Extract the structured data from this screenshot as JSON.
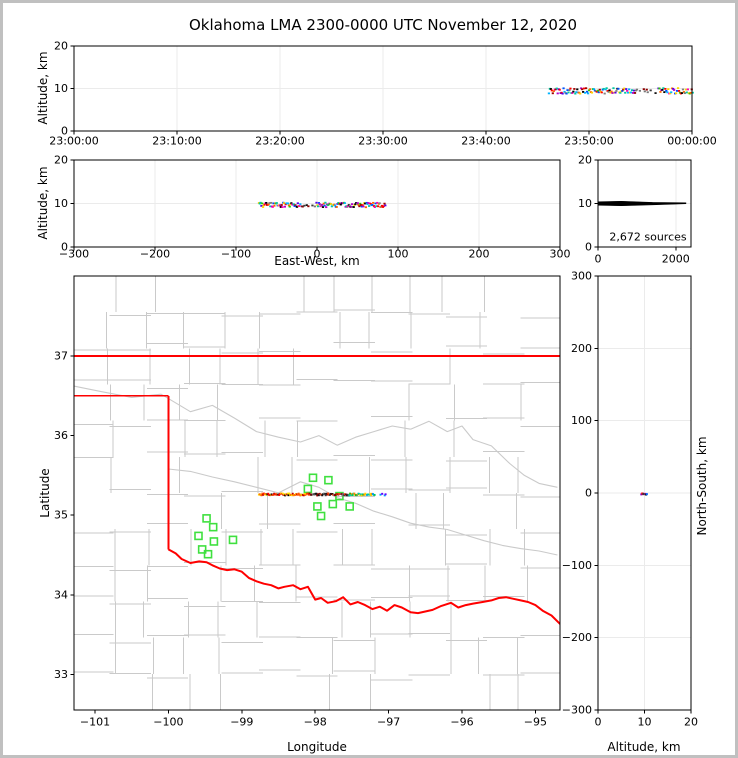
{
  "title": "Oklahoma LMA 2300-0000 UTC November 12, 2020",
  "panels": {
    "time_height": {
      "ylabel": "Altitude, km",
      "xticks": [
        "23:00:00",
        "23:10:00",
        "23:20:00",
        "23:30:00",
        "23:40:00",
        "23:50:00",
        "00:00:00"
      ],
      "yticks": [
        "0",
        "10",
        "20"
      ]
    },
    "ew_height": {
      "xlabel": "East-West, km",
      "ylabel": "Altitude, km",
      "xticks": [
        "−300",
        "−200",
        "−100",
        "0",
        "100",
        "200",
        "300"
      ],
      "yticks": [
        "0",
        "10",
        "20"
      ]
    },
    "alt_hist": {
      "annotation": "2,672 sources",
      "xticks": [
        "0",
        "2000"
      ],
      "yticks": [
        "0",
        "10",
        "20"
      ]
    },
    "map": {
      "xlabel": "Longitude",
      "ylabel": "Latitude",
      "xticks": [
        "−101",
        "−100",
        "−99",
        "−98",
        "−97",
        "−96",
        "−95"
      ],
      "yticks": [
        "33",
        "34",
        "35",
        "36",
        "37"
      ]
    },
    "ns_height": {
      "xlabel": "Altitude, km",
      "ylabel": "North-South, km",
      "xticks": [
        "0",
        "10",
        "20"
      ],
      "yticks": [
        "−300",
        "−200",
        "−100",
        "0",
        "100",
        "200",
        "300"
      ]
    }
  },
  "colors": {
    "frame": "#c0c0c0",
    "spine": "#000000",
    "grid": "#ebebeb",
    "county": "#cacaca",
    "state_border": "#ff0000",
    "station": "#3fe03f",
    "histogram": "#000000",
    "palettes": {
      "full": [
        "#ff0000",
        "#ff6600",
        "#ffd400",
        "#2ecc00",
        "#00c8a0",
        "#00b4ff",
        "#0050ff",
        "#5a00e6",
        "#b400c8",
        "#ff00b4",
        "#000000",
        "#808080",
        "#a00000"
      ],
      "warm": [
        "#ff0000",
        "#ff5a00",
        "#ffb400",
        "#c80000",
        "#000000",
        "#ffe000"
      ],
      "dark": [
        "#141414",
        "#3c3c3c",
        "#787878",
        "#8c0000",
        "#ff3c00"
      ],
      "cool": [
        "#00c850",
        "#00c8a0",
        "#ff8c00",
        "#28b400",
        "#00a0ff",
        "#ffd400"
      ],
      "sparse_blue": [
        "#0064ff",
        "#00a0ff",
        "#6400ff"
      ]
    }
  },
  "chart_data": [
    {
      "id": "time_height",
      "type": "scatter",
      "x_axis": "time_utc",
      "x_range": [
        "23:00:00",
        "00:00:00"
      ],
      "x_tick_step_min": 10,
      "ylim_km": [
        0,
        20
      ],
      "yticks_km": [
        0,
        10,
        20
      ],
      "source_band": {
        "time_extent_min_after_2300": [
          46,
          60
        ],
        "sparse_gap_min": [
          54.3,
          56.6
        ],
        "altitude_km": [
          9.0,
          10.3
        ]
      }
    },
    {
      "id": "ew_height",
      "type": "scatter",
      "xlim_km": [
        -300,
        300
      ],
      "xticks_km": [
        -300,
        -200,
        -100,
        0,
        100,
        200,
        300
      ],
      "ylim_km": [
        0,
        20
      ],
      "yticks_km": [
        0,
        10,
        20
      ],
      "source_band": {
        "ew_km_extent": [
          -73,
          83
        ],
        "sparse_gap_km": [
          -22,
          -2
        ],
        "altitude_km": [
          9.35,
          10.4
        ]
      }
    },
    {
      "id": "altitude_histogram",
      "type": "line",
      "xlim_sources": [
        0,
        2390
      ],
      "xticks_sources": [
        0,
        2000
      ],
      "ylim_km": [
        0,
        20
      ],
      "yticks_km": [
        0,
        10,
        20
      ],
      "total_sources": 2672,
      "annotation": "2,672 sources",
      "profile_sources_vs_km": [
        [
          0,
          10.4
        ],
        [
          600,
          10.5
        ],
        [
          1400,
          10.25
        ],
        [
          2260,
          10.15
        ],
        [
          2260,
          9.95
        ],
        [
          1400,
          9.7
        ],
        [
          600,
          9.5
        ],
        [
          0,
          9.6
        ]
      ]
    },
    {
      "id": "plan_view_map",
      "type": "map-scatter",
      "xlim_lon": [
        -101.29,
        -94.66
      ],
      "ylim_lat": [
        32.55,
        38.0
      ],
      "xticks_lon": [
        -101,
        -100,
        -99,
        -98,
        -97,
        -96,
        -95
      ],
      "yticks_lat": [
        33,
        34,
        35,
        36,
        37
      ],
      "flash_band": {
        "lat": 35.27,
        "lon_extent": [
          -98.78,
          -97.05
        ],
        "color_zones": [
          {
            "lon_to": -98.13,
            "palette": "warm"
          },
          {
            "lon_to": -97.55,
            "palette": "dark"
          },
          {
            "lon_to": -97.2,
            "palette": "cool"
          },
          {
            "lon_to": -97.05,
            "palette": "sparse_blue"
          }
        ]
      },
      "stations_lonlat": [
        [
          -98.03,
          35.47
        ],
        [
          -97.82,
          35.44
        ],
        [
          -98.1,
          35.33
        ],
        [
          -97.67,
          35.24
        ],
        [
          -97.76,
          35.14
        ],
        [
          -97.97,
          35.11
        ],
        [
          -97.53,
          35.11
        ],
        [
          -97.92,
          34.99
        ],
        [
          -99.48,
          34.96
        ],
        [
          -99.39,
          34.85
        ],
        [
          -99.59,
          34.74
        ],
        [
          -99.38,
          34.67
        ],
        [
          -99.12,
          34.69
        ],
        [
          -99.54,
          34.57
        ],
        [
          -99.46,
          34.51
        ]
      ],
      "state_border": {
        "north_lat": 37.0,
        "panhandle_south_lat": 36.5,
        "panhandle_east_lon": -100.0,
        "red_river_lonlat": [
          [
            -100.0,
            34.57
          ],
          [
            -99.9,
            34.52
          ],
          [
            -99.82,
            34.45
          ],
          [
            -99.7,
            34.4
          ],
          [
            -99.58,
            34.42
          ],
          [
            -99.48,
            34.41
          ],
          [
            -99.4,
            34.37
          ],
          [
            -99.3,
            34.33
          ],
          [
            -99.2,
            34.31
          ],
          [
            -99.1,
            34.32
          ],
          [
            -99.0,
            34.29
          ],
          [
            -98.9,
            34.21
          ],
          [
            -98.8,
            34.17
          ],
          [
            -98.7,
            34.14
          ],
          [
            -98.6,
            34.12
          ],
          [
            -98.5,
            34.08
          ],
          [
            -98.42,
            34.1
          ],
          [
            -98.3,
            34.12
          ],
          [
            -98.2,
            34.07
          ],
          [
            -98.1,
            34.1
          ],
          [
            -98.0,
            33.94
          ],
          [
            -97.92,
            33.96
          ],
          [
            -97.83,
            33.9
          ],
          [
            -97.72,
            33.92
          ],
          [
            -97.62,
            33.97
          ],
          [
            -97.52,
            33.88
          ],
          [
            -97.42,
            33.91
          ],
          [
            -97.32,
            33.87
          ],
          [
            -97.22,
            33.82
          ],
          [
            -97.12,
            33.85
          ],
          [
            -97.02,
            33.8
          ],
          [
            -96.92,
            33.87
          ],
          [
            -96.82,
            33.84
          ],
          [
            -96.7,
            33.78
          ],
          [
            -96.6,
            33.77
          ],
          [
            -96.5,
            33.79
          ],
          [
            -96.4,
            33.81
          ],
          [
            -96.28,
            33.86
          ],
          [
            -96.15,
            33.9
          ],
          [
            -96.05,
            33.84
          ],
          [
            -95.95,
            33.87
          ],
          [
            -95.85,
            33.89
          ],
          [
            -95.72,
            33.91
          ],
          [
            -95.6,
            33.93
          ],
          [
            -95.5,
            33.96
          ],
          [
            -95.4,
            33.97
          ],
          [
            -95.3,
            33.95
          ],
          [
            -95.2,
            33.93
          ],
          [
            -95.1,
            33.91
          ],
          [
            -95.0,
            33.87
          ],
          [
            -94.9,
            33.8
          ],
          [
            -94.78,
            33.74
          ],
          [
            -94.66,
            33.63
          ]
        ]
      },
      "rivers_lonlat": {
        "cimarron": [
          [
            -101.28,
            36.62
          ],
          [
            -100.9,
            36.55
          ],
          [
            -100.5,
            36.48
          ],
          [
            -100.1,
            36.52
          ],
          [
            -99.7,
            36.3
          ],
          [
            -99.4,
            36.38
          ],
          [
            -99.1,
            36.22
          ],
          [
            -98.8,
            36.05
          ],
          [
            -98.5,
            35.98
          ],
          [
            -98.2,
            35.92
          ],
          [
            -97.95,
            36.0
          ],
          [
            -97.7,
            35.88
          ],
          [
            -97.45,
            35.98
          ],
          [
            -97.2,
            36.05
          ],
          [
            -96.95,
            36.12
          ],
          [
            -96.7,
            36.08
          ]
        ],
        "arkansas": [
          [
            -96.7,
            36.08
          ],
          [
            -96.45,
            36.18
          ],
          [
            -96.2,
            36.05
          ],
          [
            -96.0,
            36.12
          ],
          [
            -95.85,
            35.95
          ],
          [
            -95.6,
            35.87
          ],
          [
            -95.35,
            35.65
          ],
          [
            -95.15,
            35.5
          ],
          [
            -94.95,
            35.4
          ],
          [
            -94.7,
            35.35
          ]
        ],
        "canadian": [
          [
            -100.0,
            35.58
          ],
          [
            -99.7,
            35.55
          ],
          [
            -99.4,
            35.48
          ],
          [
            -99.1,
            35.42
          ],
          [
            -98.8,
            35.35
          ],
          [
            -98.5,
            35.28
          ],
          [
            -98.2,
            35.42
          ],
          [
            -97.95,
            35.35
          ],
          [
            -97.7,
            35.22
          ],
          [
            -97.45,
            35.15
          ],
          [
            -97.2,
            35.05
          ],
          [
            -96.95,
            34.98
          ],
          [
            -96.7,
            34.9
          ],
          [
            -96.45,
            34.85
          ],
          [
            -96.2,
            34.82
          ],
          [
            -95.95,
            34.75
          ],
          [
            -95.7,
            34.68
          ],
          [
            -95.45,
            34.62
          ],
          [
            -95.2,
            34.58
          ],
          [
            -94.95,
            34.55
          ],
          [
            -94.7,
            34.5
          ]
        ]
      }
    },
    {
      "id": "ns_height",
      "type": "scatter",
      "xlim_km": [
        0,
        20
      ],
      "xticks_km": [
        0,
        10,
        20
      ],
      "ylim_km": [
        -300,
        300
      ],
      "yticks_km": [
        -300,
        -200,
        -100,
        0,
        100,
        200,
        300
      ],
      "points_alt_ns_color": [
        [
          9.1,
          -0.5,
          "#8c00c8"
        ],
        [
          9.4,
          0.4,
          "#0050ff"
        ],
        [
          9.65,
          -0.2,
          "#a00000"
        ],
        [
          9.9,
          0.15,
          "#ff00b4"
        ],
        [
          10.1,
          -0.7,
          "#000000"
        ],
        [
          9.3,
          0.7,
          "#ff0000"
        ],
        [
          10.25,
          -0.15,
          "#0064ff"
        ],
        [
          9.55,
          0.05,
          "#3c3c3c"
        ]
      ]
    }
  ]
}
